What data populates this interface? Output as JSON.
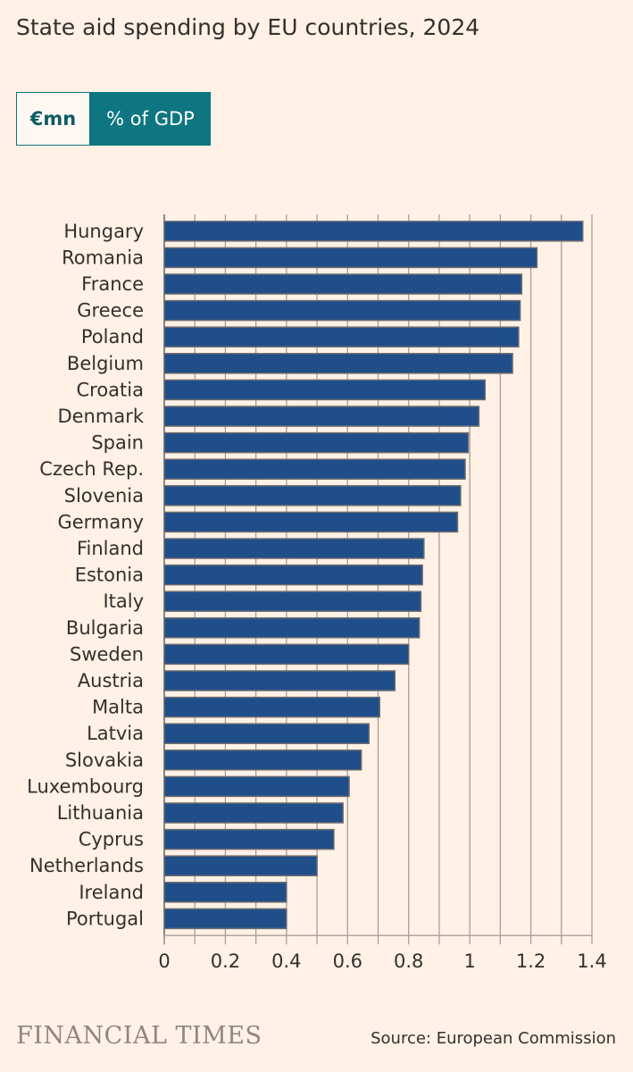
{
  "header": {
    "title": "State aid spending by EU countries, 2024"
  },
  "toggle": {
    "options": [
      "€mn",
      "% of GDP"
    ],
    "selected": "% of GDP"
  },
  "footer": {
    "logo": "FINANCIAL TIMES",
    "source": "Source: European Commission"
  },
  "colors": {
    "bar": "#1f4e89",
    "bar_border": "#6a6a70",
    "accent": "#0d7680",
    "grid": "#a79f97",
    "background": "#fff1e5"
  },
  "chart_data": {
    "type": "bar",
    "orientation": "horizontal",
    "categories": [
      "Hungary",
      "Romania",
      "France",
      "Greece",
      "Poland",
      "Belgium",
      "Croatia",
      "Denmark",
      "Spain",
      "Czech Rep.",
      "Slovenia",
      "Germany",
      "Finland",
      "Estonia",
      "Italy",
      "Bulgaria",
      "Sweden",
      "Austria",
      "Malta",
      "Latvia",
      "Slovakia",
      "Luxembourg",
      "Lithuania",
      "Cyprus",
      "Netherlands",
      "Ireland",
      "Portugal"
    ],
    "values": [
      1.37,
      1.22,
      1.17,
      1.165,
      1.16,
      1.14,
      1.05,
      1.03,
      0.995,
      0.985,
      0.97,
      0.96,
      0.85,
      0.845,
      0.84,
      0.835,
      0.8,
      0.755,
      0.705,
      0.67,
      0.645,
      0.605,
      0.585,
      0.555,
      0.5,
      0.4,
      0.4
    ],
    "xlim": [
      0,
      1.4
    ],
    "xticks": [
      0,
      0.2,
      0.4,
      0.6,
      0.8,
      1,
      1.2,
      1.4
    ],
    "xtick_labels": [
      "0",
      "0.2",
      "0.4",
      "0.6",
      "0.8",
      "1",
      "1.2",
      "1.4"
    ],
    "title": "State aid spending by EU countries, 2024",
    "xlabel": "",
    "ylabel": "",
    "grid": true
  }
}
